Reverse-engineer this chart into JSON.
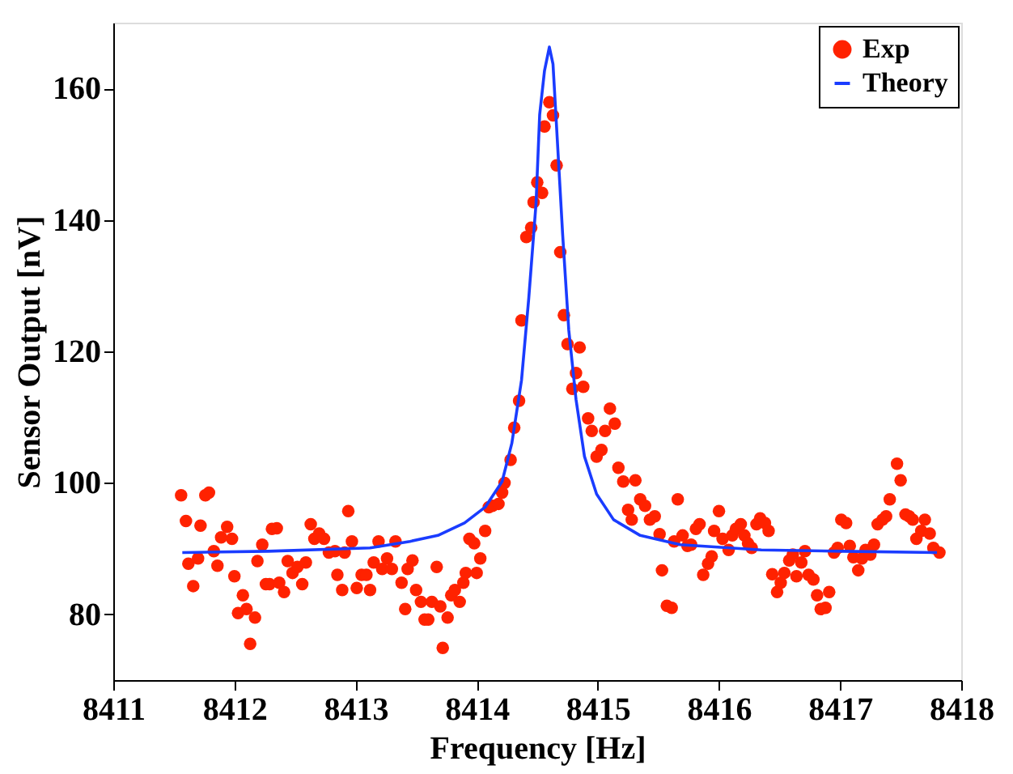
{
  "chart_data": {
    "type": "scatter",
    "xlabel": "Frequency [Hz]",
    "ylabel": "Sensor Output [nV]",
    "xlim": [
      8411,
      8418
    ],
    "xticks": [
      8411,
      8412,
      8413,
      8414,
      8415,
      8416,
      8417,
      8418
    ],
    "ylim": [
      70,
      170
    ],
    "yticks": [
      80,
      100,
      120,
      140,
      160
    ],
    "grid": false,
    "legend": "top right",
    "series": [
      {
        "name": "Exp",
        "marker": "circle",
        "color": "#ff2200",
        "x": [
          8411.56,
          8411.6,
          8411.62,
          8411.66,
          8411.7,
          8411.72,
          8411.76,
          8411.79,
          8411.83,
          8411.86,
          8411.89,
          8411.94,
          8411.98,
          8412.0,
          8412.03,
          8412.07,
          8412.1,
          8412.13,
          8412.17,
          8412.19,
          8412.23,
          8412.26,
          8412.29,
          8412.31,
          8412.35,
          8412.37,
          8412.41,
          8412.44,
          8412.48,
          8412.52,
          8412.56,
          8412.59,
          8412.63,
          8412.66,
          8412.7,
          8412.74,
          8412.78,
          8412.83,
          8412.85,
          8412.89,
          8412.91,
          8412.94,
          8412.97,
          8413.01,
          8413.05,
          8413.09,
          8413.12,
          8413.15,
          8413.19,
          8413.22,
          8413.26,
          8413.3,
          8413.33,
          8413.38,
          8413.41,
          8413.43,
          8413.47,
          8413.5,
          8413.54,
          8413.57,
          8413.6,
          8413.63,
          8413.67,
          8413.7,
          8413.72,
          8413.76,
          8413.79,
          8413.82,
          8413.86,
          8413.89,
          8413.91,
          8413.94,
          8413.98,
          8414.0,
          8414.03,
          8414.07,
          8414.1,
          8414.13,
          8414.18,
          8414.21,
          8414.23,
          8414.28,
          8414.31,
          8414.35,
          8414.37,
          8414.41,
          8414.45,
          8414.47,
          8414.5,
          8414.54,
          8414.56,
          8414.6,
          8414.63,
          8414.66,
          8414.69,
          8414.72,
          8414.75,
          8414.79,
          8414.82,
          8414.85,
          8414.88,
          8414.92,
          8414.95,
          8414.99,
          8415.03,
          8415.06,
          8415.1,
          8415.14,
          8415.17,
          8415.21,
          8415.25,
          8415.28,
          8415.31,
          8415.35,
          8415.39,
          8415.43,
          8415.47,
          8415.51,
          8415.53,
          8415.57,
          8415.61,
          8415.63,
          8415.66,
          8415.7,
          8415.74,
          8415.77,
          8415.81,
          8415.84,
          8415.87,
          8415.91,
          8415.94,
          8415.96,
          8416.0,
          8416.03,
          8416.08,
          8416.11,
          8416.14,
          8416.18,
          8416.21,
          8416.24,
          8416.27,
          8416.31,
          8416.34,
          8416.38,
          8416.41,
          8416.44,
          8416.48,
          8416.51,
          8416.54,
          8416.58,
          8416.61,
          8416.64,
          8416.68,
          8416.71,
          8416.74,
          8416.78,
          8416.81,
          8416.84,
          8416.88,
          8416.91,
          8416.95,
          8416.98,
          8417.01,
          8417.05,
          8417.08,
          8417.11,
          8417.15,
          8417.18,
          8417.21,
          8417.25,
          8417.28,
          8417.31,
          8417.35,
          8417.38,
          8417.41,
          8417.47,
          8417.5,
          8417.54,
          8417.57,
          8417.6,
          8417.63,
          8417.67,
          8417.7,
          8417.74,
          8417.77,
          8417.82
        ],
        "values": [
          98.1,
          94.2,
          87.7,
          84.3,
          88.5,
          93.5,
          98.1,
          98.5,
          89.6,
          87.4,
          91.7,
          93.3,
          91.5,
          85.8,
          80.2,
          82.9,
          80.8,
          75.5,
          79.5,
          88.1,
          90.6,
          84.6,
          84.6,
          93.0,
          93.1,
          84.8,
          83.4,
          88.1,
          86.3,
          87.2,
          84.6,
          87.9,
          93.7,
          91.5,
          92.3,
          91.5,
          89.4,
          89.6,
          86.0,
          83.7,
          89.4,
          95.7,
          91.1,
          84.0,
          86.0,
          86.0,
          83.7,
          87.9,
          91.1,
          86.9,
          88.5,
          86.9,
          91.1,
          84.8,
          80.8,
          86.9,
          88.2,
          83.7,
          81.9,
          79.2,
          79.2,
          81.9,
          87.2,
          81.2,
          74.9,
          79.5,
          82.9,
          83.7,
          81.9,
          84.8,
          86.3,
          91.5,
          90.8,
          86.3,
          88.5,
          92.7,
          96.3,
          96.5,
          96.8,
          98.5,
          100.0,
          103.5,
          108.4,
          112.5,
          124.7,
          137.4,
          138.8,
          142.7,
          145.7,
          144.1,
          154.2,
          157.9,
          155.9,
          148.3,
          135.1,
          125.5,
          121.1,
          114.3,
          116.7,
          120.6,
          114.6,
          109.8,
          107.9,
          104.0,
          105.0,
          107.9,
          111.3,
          109.0,
          102.3,
          100.2,
          95.9,
          94.4,
          100.4,
          97.5,
          96.5,
          94.4,
          94.9,
          92.2,
          86.7,
          81.3,
          81.0,
          91.1,
          97.5,
          92.0,
          90.4,
          90.6,
          93.0,
          93.7,
          86.0,
          87.7,
          88.8,
          92.7,
          95.7,
          91.5,
          89.8,
          92.0,
          93.0,
          93.7,
          92.0,
          90.8,
          90.1,
          93.7,
          94.6,
          93.9,
          92.7,
          86.1,
          83.4,
          84.8,
          86.3,
          88.2,
          89.1,
          85.8,
          87.9,
          89.6,
          86.0,
          85.3,
          82.9,
          80.8,
          81.0,
          83.4,
          89.4,
          90.1,
          94.4,
          93.9,
          90.4,
          88.7,
          86.7,
          88.5,
          89.8,
          89.1,
          90.6,
          93.7,
          94.4,
          94.9,
          97.5,
          102.9,
          100.4,
          95.2,
          94.9,
          94.4,
          91.5,
          92.7,
          94.4,
          92.3,
          90.1,
          89.4
        ]
      },
      {
        "name": "Theory",
        "type": "line",
        "line_style": "solid",
        "color": "#1a3cff",
        "x": [
          8411.57,
          8412.28,
          8413.12,
          8413.45,
          8413.68,
          8413.9,
          8414.07,
          8414.21,
          8414.29,
          8414.37,
          8414.43,
          8414.49,
          8414.52,
          8414.56,
          8414.6,
          8414.63,
          8414.66,
          8414.71,
          8414.76,
          8414.82,
          8414.89,
          8414.99,
          8415.13,
          8415.35,
          8415.68,
          8416.35,
          8417.02,
          8417.8
        ],
        "values": [
          89.4,
          89.6,
          90.1,
          91.1,
          92.0,
          93.9,
          96.3,
          100.2,
          106.0,
          115.6,
          128.1,
          142.5,
          156.0,
          162.7,
          166.3,
          163.7,
          154.0,
          137.7,
          123.3,
          112.7,
          104.0,
          98.3,
          94.4,
          92.0,
          90.6,
          89.8,
          89.6,
          89.4
        ]
      }
    ]
  }
}
